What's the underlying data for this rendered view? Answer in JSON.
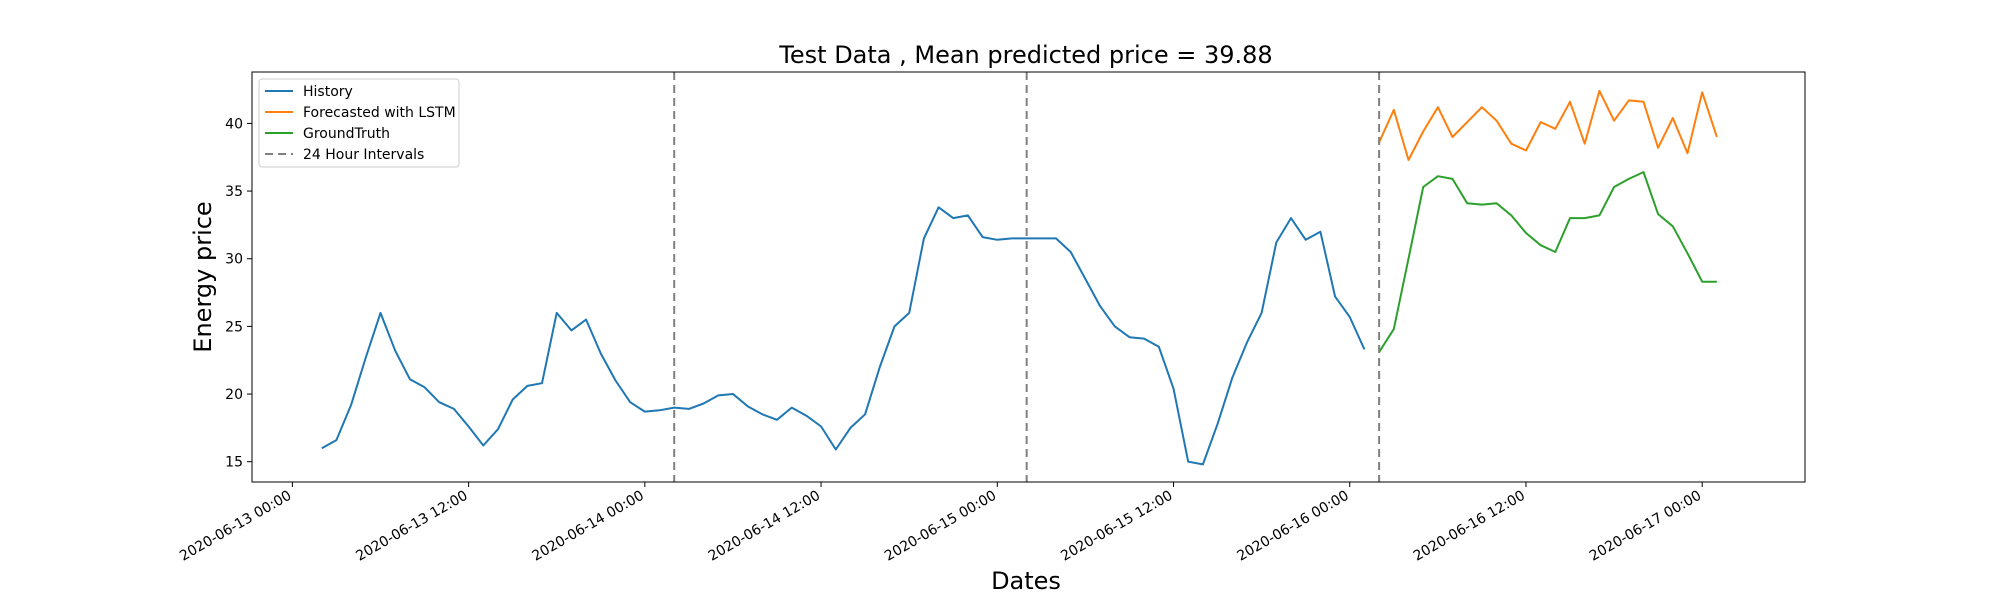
{
  "chart_data": {
    "type": "line",
    "title": "Test Data , Mean predicted price = 39.88",
    "xlabel": "Dates",
    "ylabel": "Energy price",
    "x_axis": {
      "type": "datetime",
      "ticks": [
        "2020-06-13 00:00",
        "2020-06-13 12:00",
        "2020-06-14 00:00",
        "2020-06-14 12:00",
        "2020-06-15 00:00",
        "2020-06-15 12:00",
        "2020-06-16 00:00",
        "2020-06-16 12:00",
        "2020-06-17 00:00"
      ],
      "range": [
        "2020-06-12 21:15",
        "2020-06-17 07:00"
      ]
    },
    "y_axis": {
      "ticks": [
        15,
        20,
        25,
        30,
        35,
        40
      ],
      "ylim": [
        13.5,
        43.8
      ]
    },
    "grid": false,
    "legend_position": "top-left",
    "series": [
      {
        "name": "History",
        "color": "#1f77b4",
        "x_start": "2020-06-13 02:00",
        "step_hours": 1,
        "values": [
          16.0,
          16.6,
          19.2,
          22.7,
          26.0,
          23.2,
          21.1,
          20.5,
          19.4,
          18.9,
          17.6,
          16.2,
          17.4,
          19.6,
          20.6,
          20.8,
          26.0,
          24.7,
          25.5,
          23.0,
          21.0,
          19.4,
          18.7,
          18.8,
          19.0,
          18.9,
          19.3,
          19.9,
          20.0,
          19.1,
          18.5,
          18.1,
          19.0,
          18.4,
          17.6,
          15.9,
          17.5,
          18.5,
          22.0,
          25.0,
          26.0,
          31.5,
          33.8,
          33.0,
          33.2,
          31.6,
          31.4,
          31.5,
          31.5,
          31.5,
          31.5,
          30.5,
          28.5,
          26.5,
          25.0,
          24.2,
          24.1,
          23.5,
          20.4,
          15.0,
          14.8,
          17.8,
          21.2,
          23.8,
          26.0,
          31.2,
          33.0,
          31.4,
          32.0,
          27.2,
          25.7,
          23.3
        ]
      },
      {
        "name": "Forecasted with LSTM",
        "color": "#ff7f0e",
        "x_start": "2020-06-16 02:00",
        "step_hours": 1,
        "values": [
          38.6,
          41.0,
          37.3,
          39.4,
          41.2,
          39.0,
          40.1,
          41.2,
          40.2,
          38.5,
          38.0,
          40.1,
          39.6,
          41.6,
          38.5,
          42.4,
          40.2,
          41.7,
          41.6,
          38.2,
          40.4,
          37.8,
          42.3,
          39.0
        ]
      },
      {
        "name": "GroundTruth",
        "color": "#2ca02c",
        "x_start": "2020-06-16 02:00",
        "step_hours": 1,
        "values": [
          23.1,
          24.8,
          30.0,
          35.3,
          36.1,
          35.9,
          34.1,
          34.0,
          34.1,
          33.2,
          31.9,
          31.0,
          30.5,
          33.0,
          33.0,
          33.2,
          35.3,
          35.9,
          36.4,
          33.3,
          32.4,
          30.4,
          28.3,
          28.3
        ]
      },
      {
        "name": "24 Hour Intervals",
        "color": "#808080",
        "style": "dashed",
        "vlines": [
          "2020-06-14 02:00",
          "2020-06-15 02:00",
          "2020-06-16 02:00"
        ]
      }
    ]
  }
}
